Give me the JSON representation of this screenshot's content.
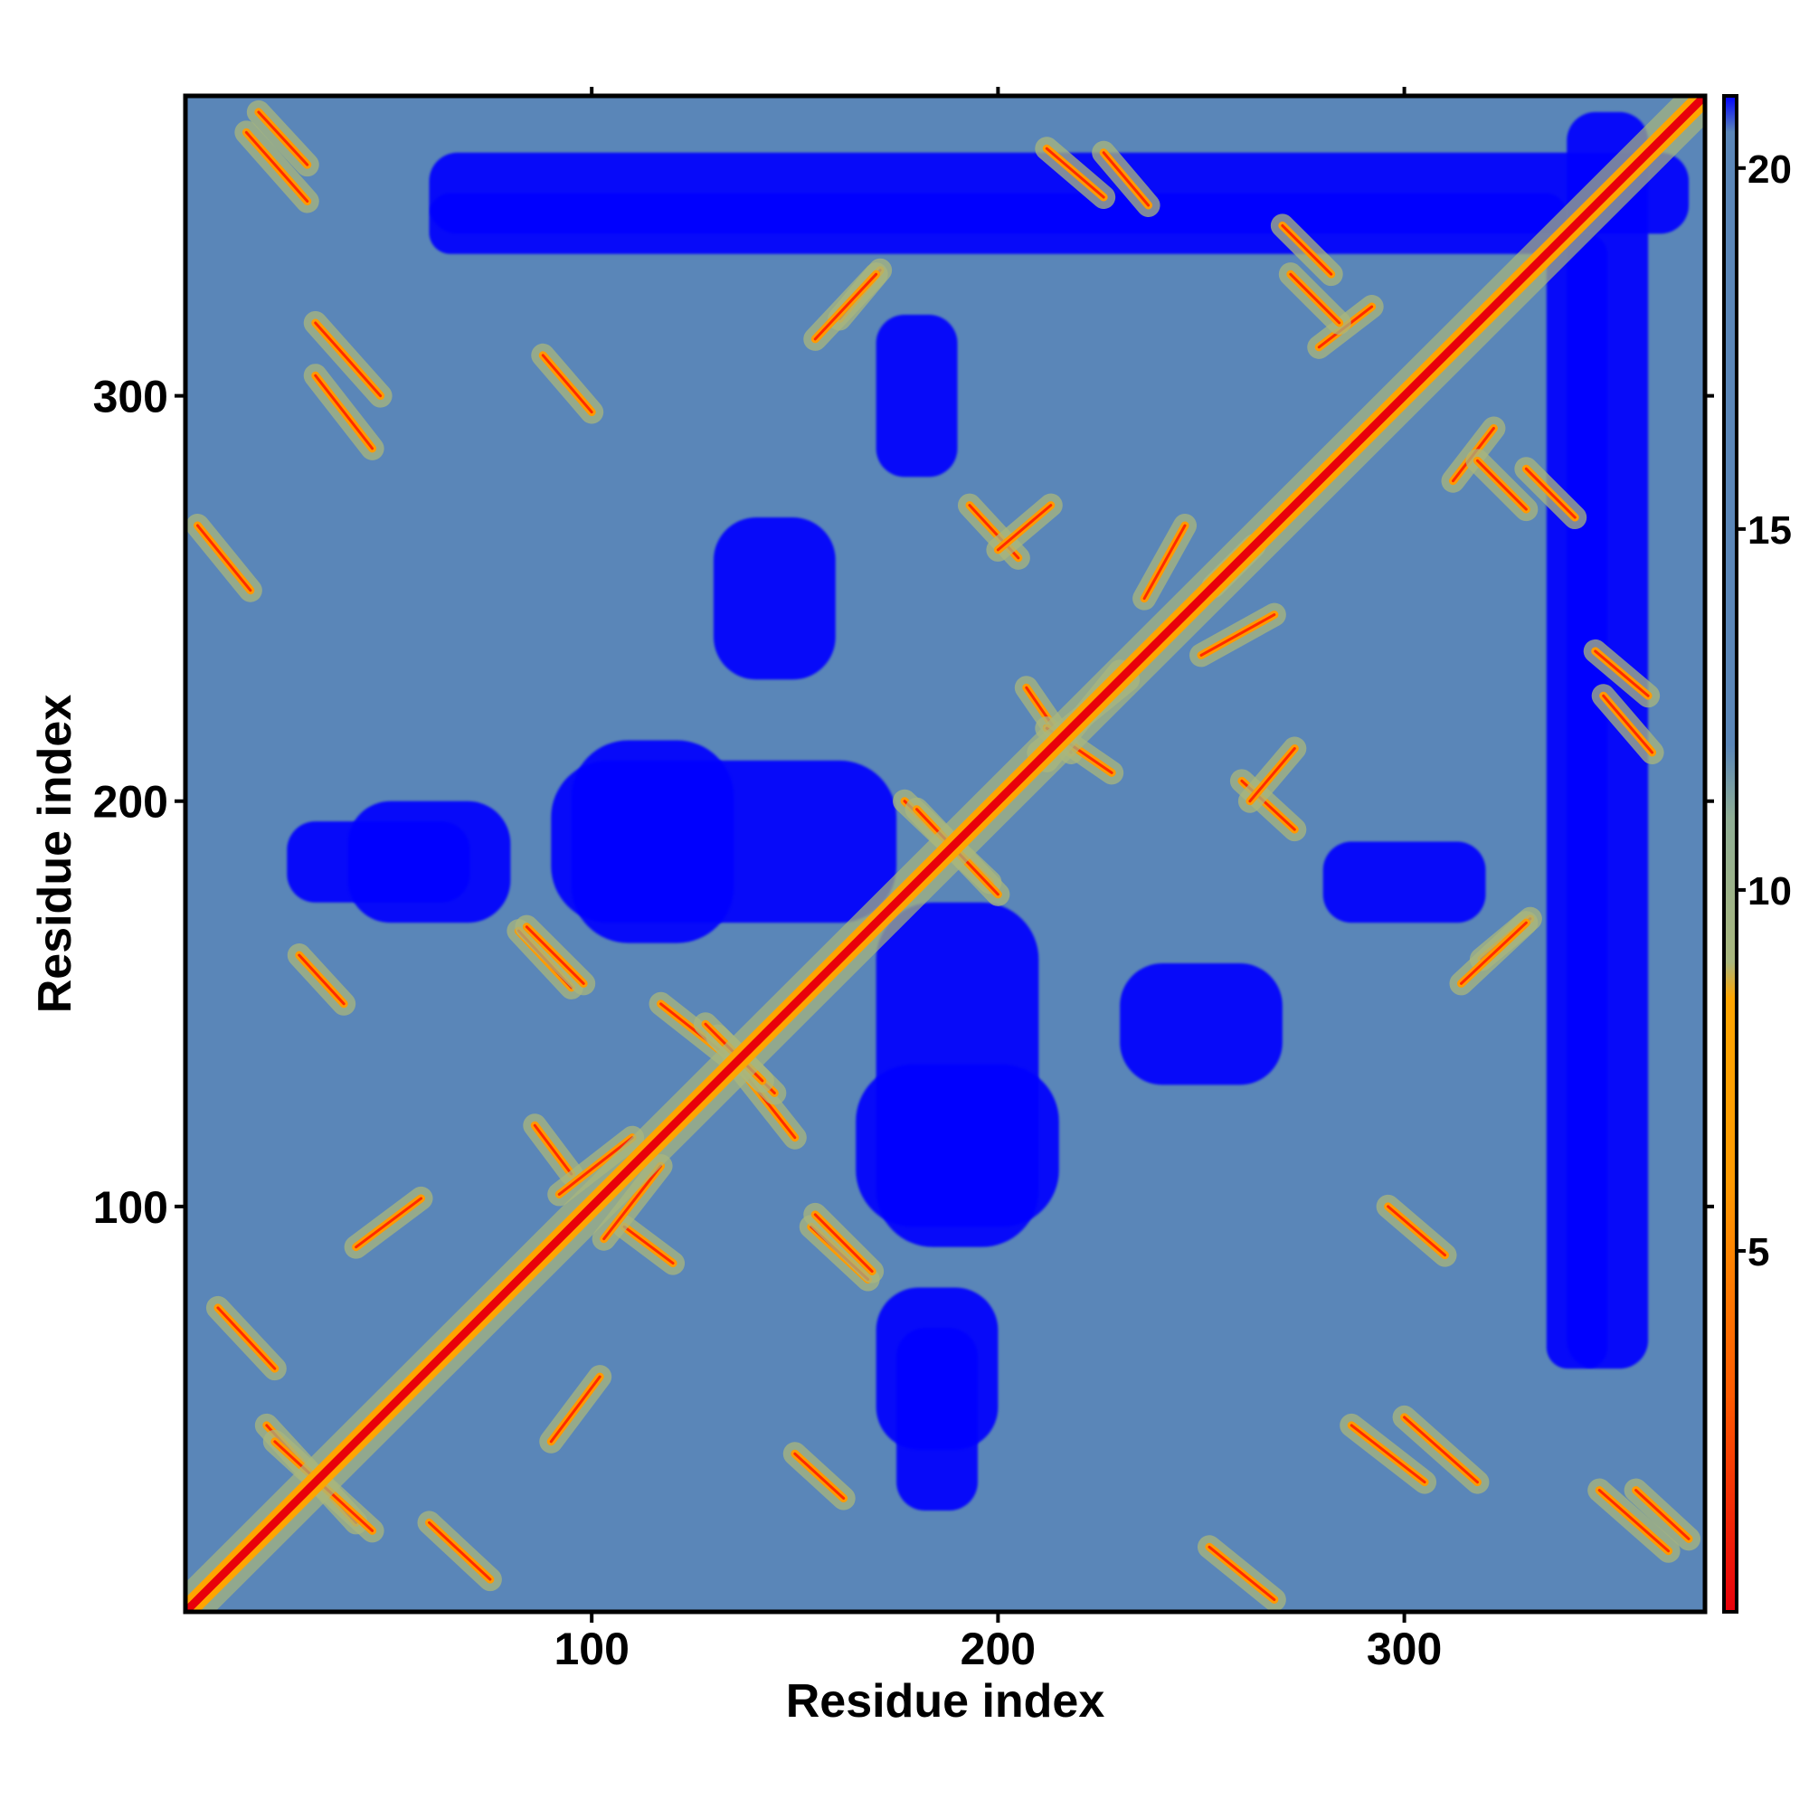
{
  "chart_data": {
    "type": "heatmap",
    "title": "",
    "xlabel": "Residue index",
    "ylabel": "Residue index",
    "xlim": [
      0,
      374
    ],
    "ylim": [
      0,
      374
    ],
    "x_ticks": [
      100,
      200,
      300
    ],
    "x_tick_labels": [
      "100",
      "200",
      "300"
    ],
    "y_ticks": [
      100,
      200,
      300
    ],
    "y_tick_labels": [
      "100",
      "200",
      "300"
    ],
    "grid": false,
    "colorbar": {
      "position": "right",
      "range": [
        0,
        21
      ],
      "ticks": [
        5,
        10,
        15,
        20
      ],
      "tick_labels": [
        "5",
        "10",
        "15",
        "20"
      ],
      "stops": [
        {
          "value": 0,
          "color": "#e8000b"
        },
        {
          "value": 3,
          "color": "#ff5a00"
        },
        {
          "value": 6,
          "color": "#ff9a00"
        },
        {
          "value": 8.5,
          "color": "#ffa500"
        },
        {
          "value": 9,
          "color": "#a9b77d"
        },
        {
          "value": 11,
          "color": "#8fae95"
        },
        {
          "value": 12,
          "color": "#5a86b8"
        },
        {
          "value": 20.5,
          "color": "#5a86b8"
        },
        {
          "value": 21,
          "color": "#0000ff"
        }
      ]
    },
    "diagonal": {
      "value": 0,
      "note": "self-distance along diagonal"
    },
    "contact_segments": [
      {
        "x": [
          18,
          30
        ],
        "y": [
          370,
          357
        ]
      },
      {
        "x": [
          226,
          237
        ],
        "y": [
          360,
          347
        ]
      },
      {
        "x": [
          270,
          282
        ],
        "y": [
          342,
          330
        ]
      },
      {
        "x": [
          161,
          171
        ],
        "y": [
          319,
          331
        ]
      },
      {
        "x": [
          279,
          292
        ],
        "y": [
          312,
          322
        ]
      },
      {
        "x": [
          32,
          46
        ],
        "y": [
          305,
          287
        ]
      },
      {
        "x": [
          318,
          330
        ],
        "y": [
          284,
          272
        ]
      },
      {
        "x": [
          193,
          205
        ],
        "y": [
          273,
          260
        ]
      },
      {
        "x": [
          250,
          268
        ],
        "y": [
          236,
          246
        ]
      },
      {
        "x": [
          253,
          263
        ],
        "y": [
          253,
          263
        ]
      },
      {
        "x": [
          349,
          361
        ],
        "y": [
          226,
          212
        ]
      },
      {
        "x": [
          207,
          218
        ],
        "y": [
          228,
          212
        ]
      },
      {
        "x": [
          210,
          232
        ],
        "y": [
          212,
          230
        ]
      },
      {
        "x": [
          177,
          198
        ],
        "y": [
          200,
          180
        ]
      },
      {
        "x": [
          262,
          273
        ],
        "y": [
          200,
          213
        ]
      },
      {
        "x": [
          82,
          95
        ],
        "y": [
          168,
          154
        ]
      },
      {
        "x": [
          314,
          330
        ],
        "y": [
          155,
          170
        ]
      },
      {
        "x": [
          117,
          136
        ],
        "y": [
          150,
          135
        ]
      },
      {
        "x": [
          131,
          145
        ],
        "y": [
          142,
          128
        ]
      },
      {
        "x": [
          86,
          95
        ],
        "y": [
          120,
          108
        ]
      },
      {
        "x": [
          103,
          117
        ],
        "y": [
          92,
          110
        ]
      },
      {
        "x": [
          155,
          169
        ],
        "y": [
          98,
          84
        ]
      },
      {
        "x": [
          296,
          310
        ],
        "y": [
          100,
          88
        ]
      },
      {
        "x": [
          8,
          22
        ],
        "y": [
          75,
          60
        ]
      },
      {
        "x": [
          20,
          42
        ],
        "y": [
          46,
          22
        ]
      },
      {
        "x": [
          90,
          102
        ],
        "y": [
          42,
          58
        ]
      },
      {
        "x": [
          150,
          162
        ],
        "y": [
          39,
          28
        ]
      },
      {
        "x": [
          300,
          318
        ],
        "y": [
          48,
          32
        ]
      },
      {
        "x": [
          348,
          365
        ],
        "y": [
          30,
          15
        ]
      },
      {
        "x": [
          252,
          268
        ],
        "y": [
          16,
          3
        ]
      }
    ],
    "far_regions": [
      {
        "x": [
          60,
          340
        ],
        "y": [
          335,
          350
        ]
      },
      {
        "x": [
          340,
          360
        ],
        "y": [
          60,
          370
        ]
      },
      {
        "x": [
          25,
          70
        ],
        "y": [
          175,
          195
        ]
      },
      {
        "x": [
          90,
          175
        ],
        "y": [
          170,
          210
        ]
      },
      {
        "x": [
          165,
          215
        ],
        "y": [
          95,
          135
        ]
      },
      {
        "x": [
          230,
          270
        ],
        "y": [
          130,
          160
        ]
      },
      {
        "x": [
          170,
          200
        ],
        "y": [
          40,
          80
        ]
      },
      {
        "x": [
          280,
          320
        ],
        "y": [
          170,
          190
        ]
      }
    ]
  }
}
